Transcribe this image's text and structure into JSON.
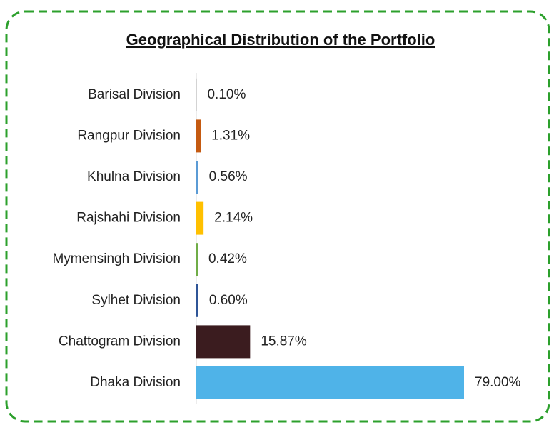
{
  "chart_data": {
    "type": "hbar",
    "title": "Geographical Distribution of the Portfolio",
    "categories": [
      "Barisal Division",
      "Rangpur Division",
      "Khulna Division",
      "Rajshahi Division",
      "Mymensingh Division",
      "Sylhet Division",
      "Chattogram Division",
      "Dhaka Division"
    ],
    "values": [
      0.1,
      1.31,
      0.56,
      2.14,
      0.42,
      0.6,
      15.87,
      79.0
    ],
    "value_labels": [
      "0.10%",
      "1.31%",
      "0.56%",
      "2.14%",
      "0.42%",
      "0.60%",
      "15.87%",
      "79.00%"
    ],
    "colors": [
      "#a5a5a5",
      "#c55a11",
      "#5b9bd5",
      "#ffc000",
      "#70ad47",
      "#2f5597",
      "#3b1c1f",
      "#4fb3e8"
    ]
  }
}
